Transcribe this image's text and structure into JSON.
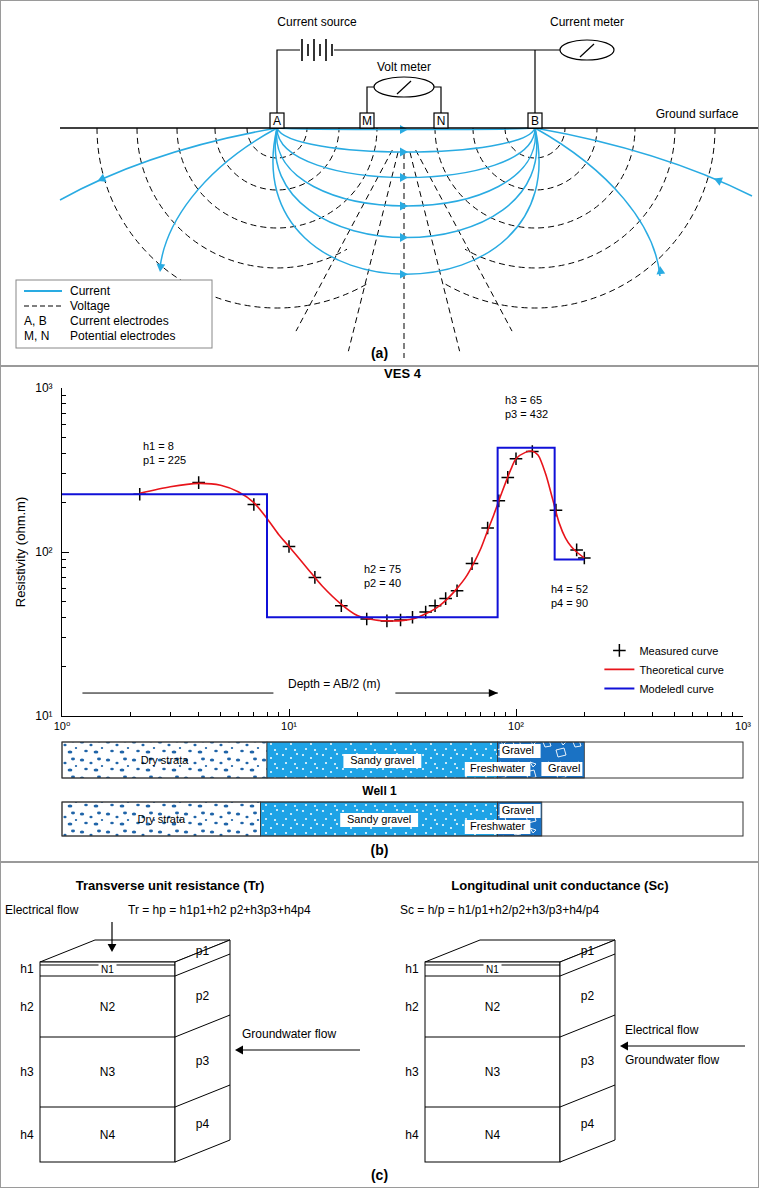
{
  "panel_a": {
    "label": "(a)",
    "current_source": "Current source",
    "current_meter": "Current meter",
    "volt_meter": "Volt meter",
    "ground_surface": "Ground surface",
    "electrodes": [
      "A",
      "M",
      "N",
      "B"
    ],
    "legend": [
      {
        "text": "Current",
        "line_style": "solid",
        "color": "#29abe2"
      },
      {
        "text": "Voltage",
        "line_style": "dashed",
        "color": "#000000"
      },
      {
        "key": "A, B",
        "text": "Current electrodes"
      },
      {
        "key": "M, N",
        "text": "Potential electrodes"
      }
    ]
  },
  "chart_data": {
    "type": "line",
    "title": "VES 4",
    "x_label": "Depth = AB/2 (m)",
    "y_label": "Resistivity (ohm.m)",
    "log": true,
    "grid": false,
    "legend": "lower right",
    "xlim": [
      1,
      1000
    ],
    "ylim": [
      10,
      1000
    ],
    "xticks": [
      {
        "value": 1,
        "label": "10⁰"
      },
      {
        "value": 10,
        "label": "10¹"
      },
      {
        "value": 100,
        "label": "10²"
      },
      {
        "value": 1000,
        "label": "10³"
      }
    ],
    "yticks": [
      {
        "value": 10,
        "label": "10¹"
      },
      {
        "value": 100,
        "label": "10²"
      },
      {
        "value": 1000,
        "label": "10³"
      }
    ],
    "series": [
      {
        "name": "Measured curve",
        "type": "scatter",
        "marker": "plus",
        "color": "#000000",
        "x": [
          2.2,
          4,
          7,
          10,
          13,
          17,
          22,
          27,
          31,
          35,
          40,
          44,
          49,
          55,
          64,
          75,
          84,
          92,
          100,
          118,
          150,
          185,
          200
        ],
        "values": [
          225,
          265,
          195,
          108,
          70,
          47,
          39,
          38,
          38.5,
          40,
          43,
          47,
          52,
          58,
          85,
          140,
          205,
          285,
          370,
          410,
          180,
          103,
          92
        ]
      },
      {
        "name": "Theoretical curve",
        "type": "line",
        "line_style": "solid",
        "color": "#e8141b",
        "x": [
          2.2,
          3,
          4,
          5,
          6,
          7,
          8,
          9,
          10,
          12,
          14,
          17,
          20,
          24,
          28,
          32,
          36,
          40,
          45,
          50,
          55,
          60,
          65,
          70,
          75,
          80,
          85,
          90,
          95,
          100,
          110,
          118,
          125,
          135,
          145,
          155,
          165,
          175,
          185,
          200
        ],
        "values": [
          228,
          250,
          262,
          255,
          232,
          200,
          160,
          128,
          108,
          80,
          62,
          48,
          41,
          38.5,
          38,
          38.3,
          39.5,
          42,
          46,
          52,
          60,
          70,
          85,
          105,
          135,
          170,
          215,
          265,
          320,
          370,
          405,
          412,
          390,
          300,
          210,
          150,
          122,
          108,
          100,
          92
        ]
      },
      {
        "name": "Modeledl curve",
        "type": "line",
        "line_style": "step",
        "color": "#1010d8",
        "x": [
          1,
          8,
          83,
          148,
          200
        ],
        "values": [
          225,
          40,
          432,
          90,
          90
        ]
      }
    ],
    "model_labels": [
      [
        "h1 = 8",
        "p1 = 225"
      ],
      [
        "h2 = 75",
        "p2 = 40"
      ],
      [
        "h3 = 65",
        "p3 = 432"
      ],
      [
        "h4 = 52",
        "p4 = 90"
      ]
    ]
  },
  "panel_b": {
    "label": "(b)",
    "ves_column": {
      "layers": [
        {
          "labels": [
            "Dry strata"
          ],
          "from": 1,
          "to": 8,
          "fill": "dry"
        },
        {
          "labels": [
            "Sandy gravel"
          ],
          "from": 8,
          "to": 83,
          "fill": "sand"
        },
        {
          "labels": [
            "Gravel",
            "Gravel"
          ],
          "from": 83,
          "to": 200,
          "fill": "gravel"
        }
      ],
      "water_label": "Freshwater"
    },
    "well": {
      "title": "Well 1",
      "layers": [
        {
          "labels": [
            "Dry strata"
          ],
          "from": 1,
          "to": 7.5,
          "fill": "dry"
        },
        {
          "labels": [
            "Sandy gravel"
          ],
          "from": 7.5,
          "to": 83,
          "fill": "sand"
        },
        {
          "labels": [
            "Gravel"
          ],
          "from": 83,
          "to": 130,
          "fill": "gravel"
        }
      ],
      "water_label": "Freshwater"
    }
  },
  "panel_c": {
    "label": "(c)",
    "blocks": [
      {
        "title": "Transverse unit resistance (Tr)",
        "formula": "Tr = hp = h1p1+h2 p2+h3p3+h4p4",
        "electrical_flow": "Electrical flow",
        "groundwater_flow": "Groundwater flow"
      },
      {
        "title": "Longitudinal unit conductance (Sc)",
        "formula": "Sc = h/p = h1/p1+h2/p2+h3/p3+h4/p4",
        "electrical_flow": "Electrical flow",
        "groundwater_flow": "Groundwater flow"
      }
    ],
    "thickness_labels": [
      "h1",
      "h2",
      "h3",
      "h4"
    ],
    "layer_labels": [
      "N1",
      "N2",
      "N3",
      "N4"
    ],
    "resistivity_labels": [
      "p1",
      "p2",
      "p3",
      "p4"
    ]
  }
}
